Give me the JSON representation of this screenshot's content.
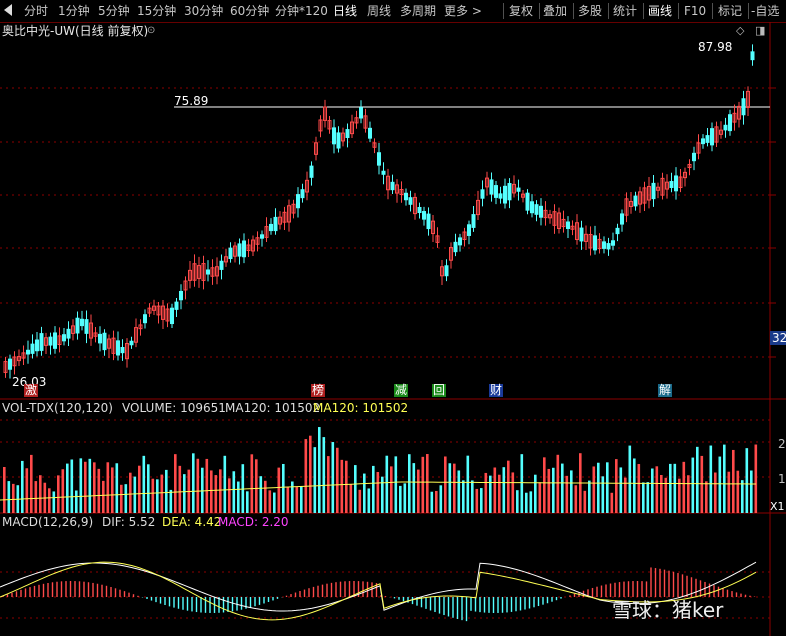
{
  "toolbar": {
    "items": [
      "分时",
      "1分钟",
      "5分钟",
      "15分钟",
      "30分钟",
      "60分钟",
      "分钟*120",
      "日线",
      "周线",
      "多周期",
      "更多 >"
    ],
    "active": "日线",
    "right_items": [
      "复权",
      "叠加",
      "多股",
      "统计",
      "画线",
      "F10",
      "标记",
      "-自选"
    ]
  },
  "price_panel": {
    "title": "奥比中光-UW(日线 前复权)",
    "high_label": "87.98",
    "level_label": "75.89",
    "low_label": "26.03",
    "right_edge_value": "32",
    "events": [
      "激",
      "榜",
      "减",
      "回",
      "财",
      "解"
    ]
  },
  "volume_panel": {
    "title": "VOL-TDX(120,120)",
    "volume_text": "VOLUME: 109651",
    "ma_text": "MA120: 101502",
    "ma_text2": "MA120: 101502",
    "axis_top": "2",
    "axis_mid": "1",
    "axis_unit": "X1"
  },
  "macd_panel": {
    "title": "MACD(12,26,9)",
    "dif_text": "DIF: 5.52",
    "dea_text": "DEA: 4.42",
    "macd_text": "MACD: 2.20"
  },
  "watermark": {
    "text": "雪球：猪ker"
  },
  "colors": {
    "up": "#ff4a4a",
    "down": "#54ffff",
    "yellow": "#ffff54",
    "magenta": "#ff44ff",
    "grid": "#8b0000"
  }
}
